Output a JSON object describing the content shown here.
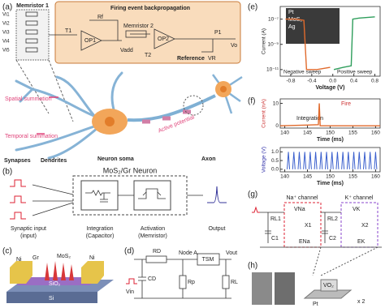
{
  "figure": {
    "a": {
      "label": "(a)",
      "memristor1": "Memristor 1",
      "backprop": "Firing event backpropagation",
      "rf": "Rf",
      "t1": "T1",
      "op1": "OP1",
      "memristor2": "Memristor 2",
      "vadd": "Vadd",
      "op2": "OP2",
      "t2": "T2",
      "p1": "P1",
      "vo": "Vo",
      "reference": "Reference",
      "vr": "VR",
      "inputs": [
        "Vi1",
        "Vi2",
        "Vi3",
        "Vi4",
        "Vi5"
      ],
      "spatial": "Spatial summation",
      "temporal": "Temporal summation",
      "active": "Active potential",
      "synapses": "Synapses",
      "dendrites": "Dendrites",
      "soma": "Neuron soma",
      "axon": "Axon"
    },
    "b": {
      "label": "(b)",
      "title": "MoS₂/Gr Neuron",
      "input": "Synaptic input",
      "input_sub": "(input)",
      "integration": "Integration",
      "integration_sub": "(Capacitor)",
      "activation": "Activation",
      "activation_sub": "(Memristor)",
      "output": "Output"
    },
    "c": {
      "label": "(c)",
      "ni_left": "Ni",
      "gr": "Gr",
      "mos2": "MoS₂",
      "ni_right": "Ni",
      "sio2": "SiO₂",
      "si": "Si"
    },
    "d": {
      "label": "(d)",
      "rd": "RD",
      "node": "Node A",
      "tsm": "TSM",
      "vout": "Vout",
      "cd": "CD",
      "rp": "Rp",
      "rl": "RL",
      "vin": "Vin"
    },
    "e": {
      "label": "(e)",
      "inset": [
        "Pt",
        "MoS₂",
        "Ag"
      ],
      "chart": {
        "type": "line",
        "ylabel": "Current (A)",
        "xlabel": "Voltage (V)",
        "log_y": true,
        "xlim": [
          -1,
          0.9
        ],
        "ylim": [
          3e-12,
          1e-06
        ],
        "xticks": [
          -0.8,
          -0.4,
          {
            "value": 0,
            "label": "0.0"
          },
          0.4,
          0.8
        ],
        "yticks": [
          {
            "value": 1e-07,
            "label": "10⁻⁷"
          },
          {
            "value": 1e-09,
            "label": "10⁻⁹"
          },
          {
            "value": 1e-11,
            "label": "10⁻¹¹"
          }
        ],
        "series": [
          {
            "name": "Negative sweep",
            "color": "#e06a2c",
            "x": [
              -0.9,
              -0.7,
              -0.55,
              -0.5,
              -0.3,
              -0.05
            ],
            "values": [
              1e-07,
              1e-07,
              8e-08,
              1e-11,
              1e-11,
              1.5e-11
            ]
          },
          {
            "name": "Positive sweep",
            "color": "#2f9e5c",
            "x": [
              0.02,
              0.2,
              0.35,
              0.38,
              0.5,
              0.8
            ],
            "values": [
              1e-11,
              1.5e-11,
              2e-11,
              1e-07,
              1.2e-07,
              1.5e-07
            ]
          }
        ]
      }
    },
    "f": {
      "label": "(f)",
      "top": {
        "type": "line",
        "ylabel": "Current (nA)",
        "xlabel": "Time (ms)",
        "annotations": [
          "Fire",
          "Integration"
        ],
        "xlim": [
          139,
          161
        ],
        "ylim": [
          -1,
          12
        ],
        "xticks": [
          140,
          145,
          150,
          155,
          160
        ],
        "yticks": [
          0,
          10
        ],
        "series": [
          {
            "color": "#e06a2c",
            "x": [
              139,
              147.4,
              147.6,
              147.8,
              161
            ],
            "values": [
              0,
              0.5,
              10,
              0,
              0
            ]
          }
        ]
      },
      "bottom": {
        "type": "spikes",
        "ylabel": "Voltage (V)",
        "xlabel": "Time (ms)",
        "color": "#3a5fcd",
        "xlim": [
          139,
          161
        ],
        "ylim": [
          -0.15,
          1.25
        ],
        "xticks": [
          140,
          145,
          150,
          155,
          160
        ],
        "yticks": [
          {
            "value": 0,
            "label": "0.0"
          },
          0.5,
          {
            "value": 1,
            "label": "1.0"
          }
        ],
        "x": [
          140.8,
          142.0,
          143.2,
          144.4,
          145.6,
          146.8,
          148.0,
          149.2,
          150.4,
          151.6,
          152.8,
          154.0,
          155.2,
          156.4,
          157.6,
          158.8,
          160.0
        ],
        "values": [
          1,
          1,
          1,
          1,
          1,
          1,
          1,
          1,
          1,
          1,
          1,
          1,
          1,
          1,
          1,
          1,
          1
        ]
      }
    },
    "g": {
      "label": "(g)",
      "na": "Na⁺ channel",
      "k": "K⁺ channel",
      "rl1": "RL1",
      "c1": "C1",
      "rl2": "RL2",
      "c2": "C2",
      "vna": "VNa",
      "vk": "VK",
      "x1": "X1",
      "x2": "X2",
      "ena": "ENa",
      "ek": "EK"
    },
    "h": {
      "label": "(h)",
      "vo2": "VO₂",
      "pt": "Pt",
      "times": "x 2"
    }
  }
}
